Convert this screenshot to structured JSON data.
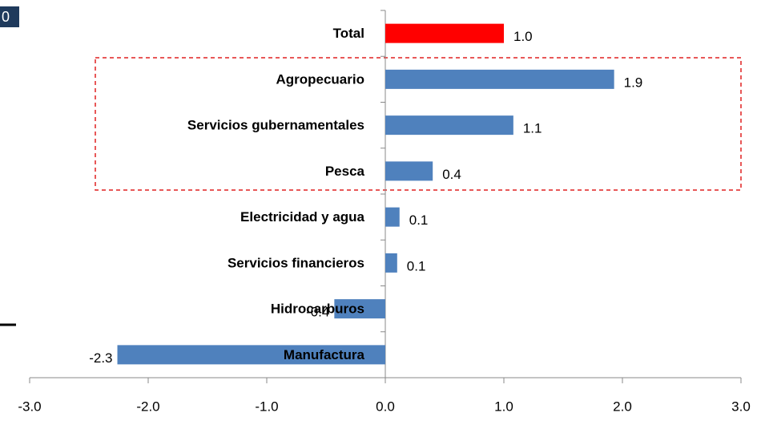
{
  "badge": "0",
  "chart_data": {
    "type": "barh",
    "categories": [
      "Total",
      "Agropecuario",
      "Servicios gubernamentales",
      "Pesca",
      "Electricidad y agua",
      "Servicios financieros",
      "Hidrocarburos",
      "Manufactura"
    ],
    "values": [
      1.0,
      1.93,
      1.08,
      0.4,
      0.12,
      0.1,
      -0.43,
      -2.26
    ],
    "value_labels": [
      "1.0",
      "1.9",
      "1.1",
      "0.4",
      "0.1",
      "0.1",
      "-0.4",
      "-2.3"
    ],
    "colors": [
      "#ff0000",
      "#4f81bd",
      "#4f81bd",
      "#4f81bd",
      "#4f81bd",
      "#4f81bd",
      "#4f81bd",
      "#4f81bd"
    ],
    "xlim": [
      -3,
      3
    ],
    "xticks": [
      {
        "value": -3,
        "label": "-3.0"
      },
      {
        "value": -2,
        "label": "-2.0"
      },
      {
        "value": -1,
        "label": "-1.0"
      },
      {
        "value": 0,
        "label": "0.0"
      },
      {
        "value": 1,
        "label": "1.0"
      },
      {
        "value": 2,
        "label": "2.0"
      },
      {
        "value": 3,
        "label": "3.0"
      }
    ]
  }
}
